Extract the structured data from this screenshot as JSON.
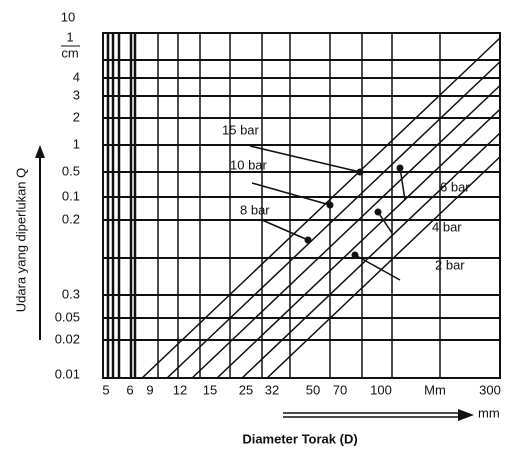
{
  "figure": {
    "y_axis_title": "Udara yang diperlukan Q",
    "x_axis_title": "Diameter Torak  (D)",
    "x_unit": "mm",
    "y_top_label": "10",
    "y_fraction": {
      "numerator": "1",
      "denominator": "cm"
    },
    "y_labels": [
      "4",
      "3",
      "2",
      "1",
      "0.5",
      "0.1",
      "0.2",
      "0.3",
      "0.05",
      "0.02",
      "0.01"
    ],
    "x_labels": [
      "5",
      "6",
      "9",
      "12",
      "15",
      "25",
      "32",
      "50",
      "70",
      "100",
      "Mm",
      "300"
    ],
    "line_labels": [
      "15 bar",
      "10 bar",
      "8 bar",
      "6 bar",
      "4 bar",
      "2 bar"
    ]
  }
}
